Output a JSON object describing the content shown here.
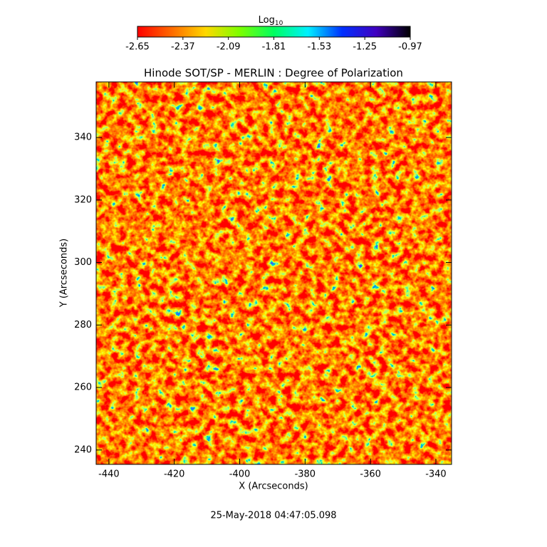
{
  "chart_data": {
    "type": "image",
    "title": "Hinode SOT/SP - MERLIN : Degree of Polarization",
    "x_label": "X (Arcseconds)",
    "y_label": "Y (Arcseconds)",
    "timestamp": "25-May-2018 04:47:05.098",
    "colorbar": {
      "label": "Log",
      "label_sub": "10",
      "lim": [
        -2.65,
        -0.97
      ],
      "ticks": [
        -2.65,
        -2.37,
        -2.09,
        -1.81,
        -1.53,
        -1.25,
        -0.97
      ],
      "colormap": [
        "#ff0000",
        "#ff6a00",
        "#ffd800",
        "#7cff00",
        "#00ff60",
        "#00f0ff",
        "#0030ff",
        "#4000c0",
        "#000000"
      ]
    },
    "xlim": [
      -443.9,
      -335.2
    ],
    "xticks": [
      -440,
      -420,
      -400,
      -380,
      -360,
      -340
    ],
    "ylim": [
      235.4,
      357.8
    ],
    "yticks": [
      240,
      260,
      280,
      300,
      320,
      340
    ]
  }
}
